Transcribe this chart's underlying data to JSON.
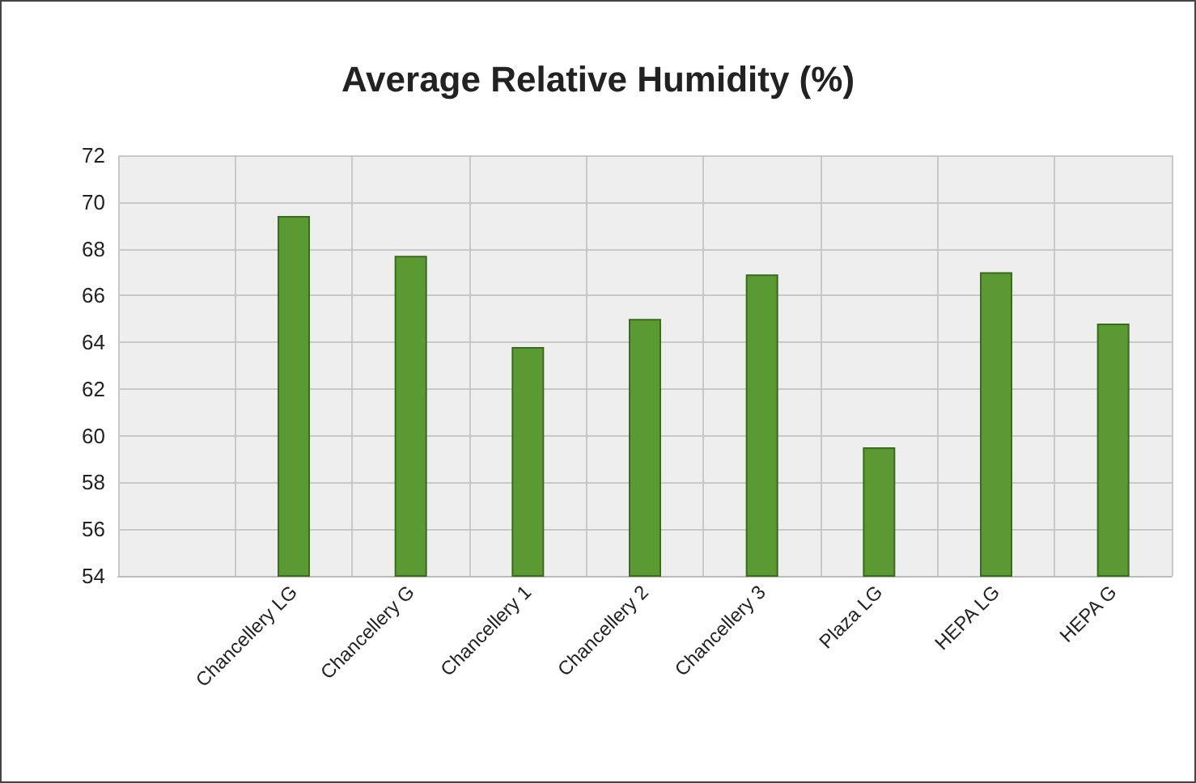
{
  "chart_data": {
    "type": "bar",
    "title": "Average Relative Humidity (%)",
    "categories": [
      null,
      "Chancellery LG",
      "Chancellery G",
      "Chancellery 1",
      "Chancellery 2",
      "Chancellery 3",
      "Plaza LG",
      "HEPA LG",
      "HEPA G"
    ],
    "values": [
      null,
      69.4,
      67.7,
      63.8,
      65.0,
      66.9,
      59.5,
      67.0,
      64.8
    ],
    "color": "#5b9a32",
    "ylim": [
      54,
      72
    ],
    "yticks": [
      54,
      56,
      58,
      60,
      62,
      64,
      66,
      68,
      70,
      72
    ],
    "grid": true
  }
}
